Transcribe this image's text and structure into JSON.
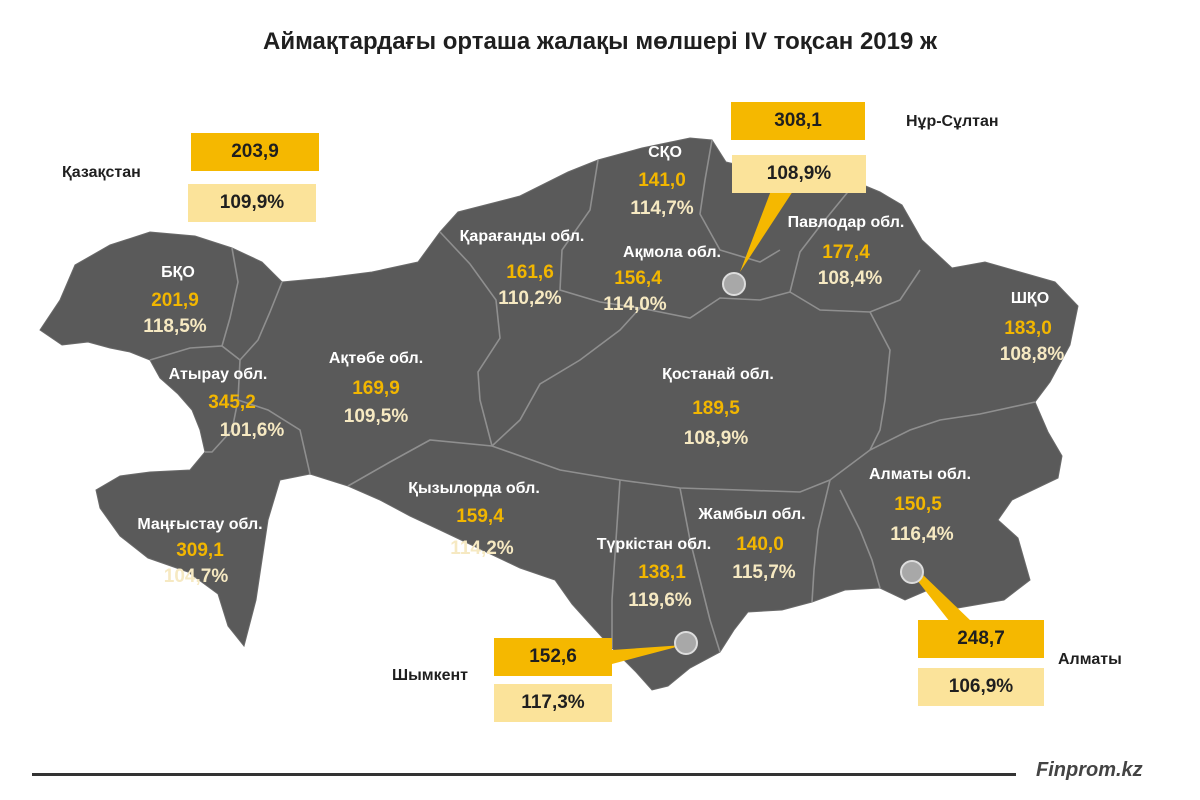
{
  "title": "Аймақтардағы орташа жалақы мөлшері IV тоқсан 2019 ж",
  "brand": "Finprom.kz",
  "colors": {
    "map_fill": "#5a5a5a",
    "border": "#8f8f8f",
    "value": "#f2b600",
    "percent": "#f6e9c2",
    "box_dark": "#f5b800",
    "box_light": "#fbe39a"
  },
  "national": {
    "label": "Қазақстан",
    "value": "203,9",
    "percent": "109,9%"
  },
  "cities": [
    {
      "name": "Нұр-Сұлтан",
      "value": "308,1",
      "percent": "108,9%"
    },
    {
      "name": "Алматы",
      "value": "248,7",
      "percent": "106,9%"
    },
    {
      "name": "Шымкент",
      "value": "152,6",
      "percent": "117,3%"
    }
  ],
  "regions": [
    {
      "name": "БҚО",
      "value": "201,9",
      "percent": "118,5%"
    },
    {
      "name": "Атырау обл.",
      "value": "345,2",
      "percent": "101,6%"
    },
    {
      "name": "Маңғыстау обл.",
      "value": "309,1",
      "percent": "104,7%"
    },
    {
      "name": "Ақтөбе обл.",
      "value": "169,9",
      "percent": "109,5%"
    },
    {
      "name": "Қарағанды обл.",
      "value": "161,6",
      "percent": "110,2%"
    },
    {
      "name": "СҚО",
      "value": "141,0",
      "percent": "114,7%"
    },
    {
      "name": "Ақмола обл.",
      "value": "156,4",
      "percent": "114,0%"
    },
    {
      "name": "Павлодар обл.",
      "value": "177,4",
      "percent": "108,4%"
    },
    {
      "name": "ШҚО",
      "value": "183,0",
      "percent": "108,8%"
    },
    {
      "name": "Қостанай обл.",
      "value": "189,5",
      "percent": "108,9%"
    },
    {
      "name": "Қызылорда обл.",
      "value": "159,4",
      "percent": "114,2%"
    },
    {
      "name": "Жамбыл обл.",
      "value": "140,0",
      "percent": "115,7%"
    },
    {
      "name": "Түркістан обл.",
      "value": "138,1",
      "percent": "119,6%"
    },
    {
      "name": "Алматы обл.",
      "value": "150,5",
      "percent": "116,4%"
    }
  ]
}
